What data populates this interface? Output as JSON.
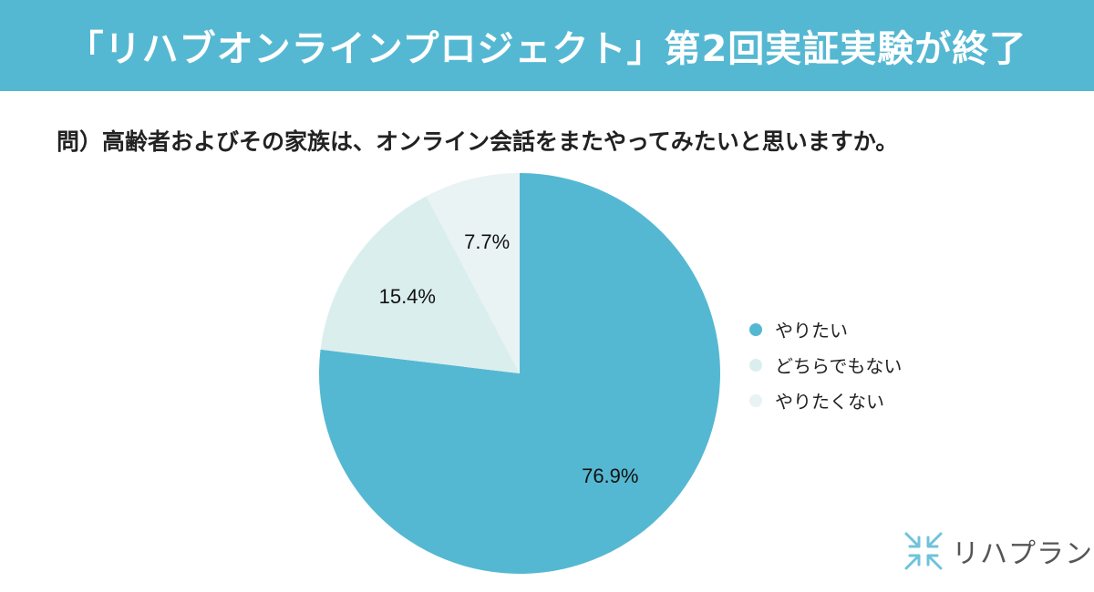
{
  "header": {
    "title": "「リハブオンラインプロジェクト」第2回実証実験が終了"
  },
  "question": "問）高齢者およびその家族は、オンライン会話をまたやってみたいと思いますか。",
  "brand": {
    "logo_text": "リハプラン",
    "logo_icon": "arrows-icon"
  },
  "colors": {
    "banner": "#55b8d2",
    "slice_yes": "#55b8d2",
    "slice_neutral": "#dbeeee",
    "slice_no": "#e9f3f4",
    "logo_icon": "#6ec3db"
  },
  "chart_data": {
    "type": "pie",
    "title": "",
    "categories": [
      "やりたい",
      "どちらでもない",
      "やりたくない"
    ],
    "values": [
      76.9,
      15.4,
      7.7
    ],
    "labels": [
      "76.9%",
      "15.4%",
      "7.7%"
    ],
    "colors": [
      "#55b8d2",
      "#dbeeee",
      "#e9f3f4"
    ],
    "start": "12 o'clock",
    "direction": "clockwise",
    "legend": "right"
  }
}
